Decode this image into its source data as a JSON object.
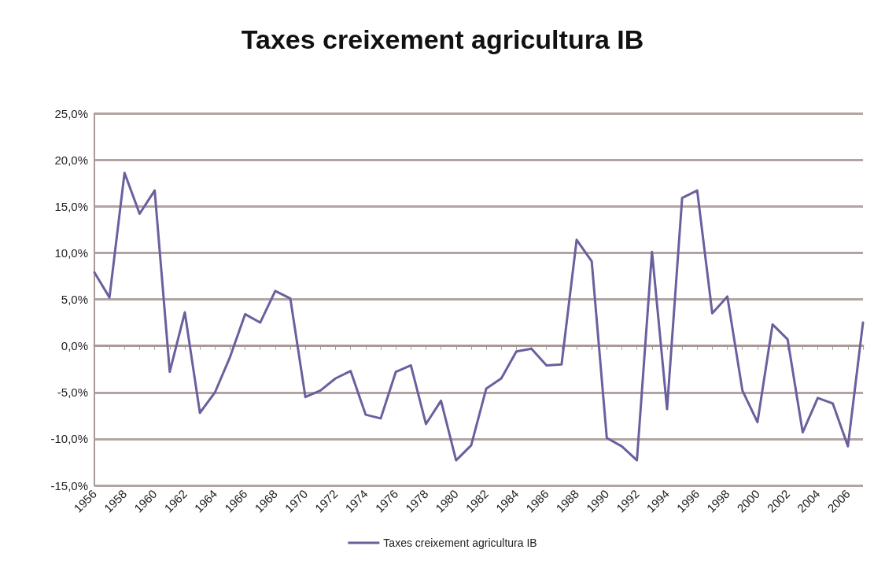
{
  "chart_data": {
    "type": "line",
    "title": "Taxes creixement agricultura IB",
    "categories": [
      "1956",
      null,
      "1958",
      null,
      "1960",
      null,
      "1962",
      null,
      "1964",
      null,
      "1966",
      null,
      "1968",
      null,
      "1970",
      null,
      "1972",
      null,
      "1974",
      null,
      "1976",
      null,
      "1978",
      null,
      "1980",
      null,
      "1982",
      null,
      "1984",
      null,
      "1986",
      null,
      "1988",
      null,
      "1990",
      null,
      "1992",
      null,
      "1994",
      null,
      "1996",
      null,
      "1998",
      null,
      "2000",
      null,
      "2002",
      null,
      "2004",
      null,
      "2006",
      null
    ],
    "series": [
      {
        "name": "Taxes creixement agricultura IB",
        "color": "#6b5f9e",
        "values": [
          7.9,
          5.2,
          18.6,
          14.2,
          16.7,
          -2.8,
          3.6,
          -7.2,
          -5.0,
          -1.2,
          3.4,
          2.5,
          5.9,
          5.1,
          -5.5,
          -4.8,
          -3.5,
          -2.7,
          -7.4,
          -7.8,
          -2.8,
          -2.1,
          -8.4,
          -5.9,
          -12.3,
          -10.7,
          -4.6,
          -3.5,
          -0.6,
          -0.3,
          -2.1,
          -2.0,
          11.4,
          9.1,
          -9.9,
          -10.8,
          -12.3,
          10.1,
          -6.8,
          15.9,
          16.7,
          3.5,
          5.3,
          -4.8,
          -8.2,
          2.3,
          0.7,
          -9.3,
          -5.6,
          -6.2,
          -10.8,
          2.5
        ]
      }
    ],
    "ylim": [
      -15,
      25
    ],
    "yticks": [
      {
        "value": -15,
        "label": "-15,0%"
      },
      {
        "value": -10,
        "label": "-10,0%"
      },
      {
        "value": -5,
        "label": "-5,0%"
      },
      {
        "value": 0,
        "label": "0,0%"
      },
      {
        "value": 5,
        "label": "5,0%"
      },
      {
        "value": 10,
        "label": "10,0%"
      },
      {
        "value": 15,
        "label": "15,0%"
      },
      {
        "value": 20,
        "label": "20,0%"
      },
      {
        "value": 25,
        "label": "25,0%"
      }
    ],
    "grid": "y",
    "legend": "bottom",
    "marker": "none",
    "line_style": "solid"
  }
}
